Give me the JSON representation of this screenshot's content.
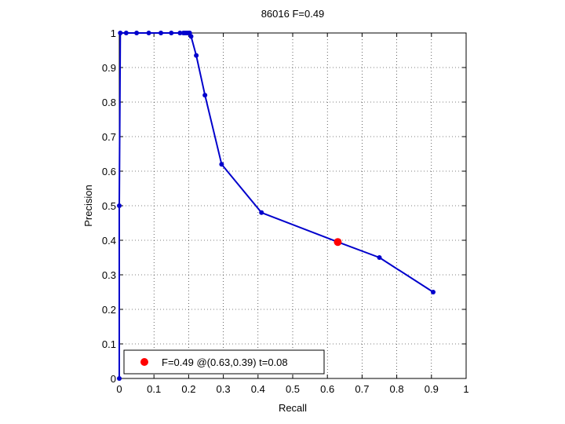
{
  "chart_data": {
    "type": "line",
    "title": "86016 F=0.49",
    "xlabel": "Recall",
    "ylabel": "Precision",
    "xlim": [
      0,
      1
    ],
    "ylim": [
      0,
      1
    ],
    "grid": true,
    "xticks": [
      0,
      0.1,
      0.2,
      0.3,
      0.4,
      0.5,
      0.6,
      0.7,
      0.8,
      0.9,
      1
    ],
    "yticks": [
      0,
      0.1,
      0.2,
      0.3,
      0.4,
      0.5,
      0.6,
      0.7,
      0.8,
      0.9,
      1
    ],
    "xtick_labels": [
      "0",
      "0.1",
      "0.2",
      "0.3",
      "0.4",
      "0.5",
      "0.6",
      "0.7",
      "0.8",
      "0.9",
      "1"
    ],
    "ytick_labels": [
      "0",
      "0.1",
      "0.2",
      "0.3",
      "0.4",
      "0.5",
      "0.6",
      "0.7",
      "0.8",
      "0.9",
      "1"
    ],
    "series": [
      {
        "color": "#0000cc",
        "x": [
          0,
          0,
          0.003,
          0.02,
          0.05,
          0.085,
          0.12,
          0.15,
          0.175,
          0.185,
          0.19,
          0.195,
          0.2,
          0.203,
          0.207,
          0.222,
          0.247,
          0.295,
          0.41,
          0.63,
          0.75,
          0.905
        ],
        "y": [
          0,
          0.5,
          1,
          1,
          1,
          1,
          1,
          1,
          1,
          1,
          1,
          1,
          1,
          1,
          0.99,
          0.935,
          0.82,
          0.62,
          0.48,
          0.395,
          0.35,
          0.25
        ]
      }
    ],
    "best_point": {
      "x": 0.63,
      "y": 0.39,
      "color": "#ff0000"
    },
    "legend": {
      "location": "bottom-left",
      "label": "F=0.49 @(0.63,0.39) t=0.08"
    }
  }
}
